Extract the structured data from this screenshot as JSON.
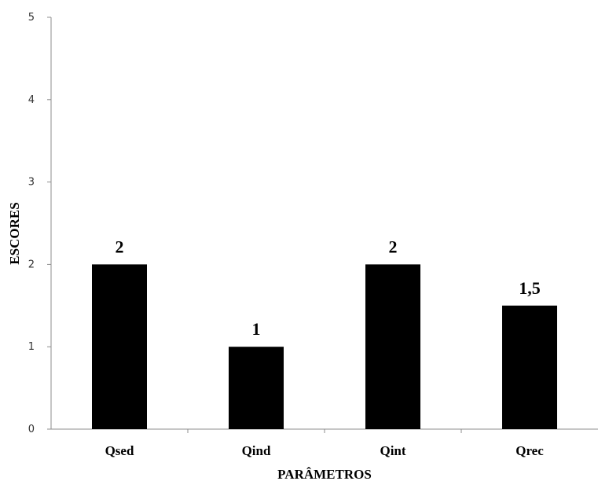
{
  "chart_data": {
    "type": "bar",
    "categories": [
      "Qsed",
      "Qind",
      "Qint",
      "Qrec"
    ],
    "values": [
      2,
      1,
      2,
      1.5
    ],
    "data_labels": [
      "2",
      "1",
      "2",
      "1,5"
    ],
    "xlabel": "PARÂMETROS",
    "ylabel": "ESCORES",
    "ylim": [
      0,
      5
    ],
    "yticks": [
      "0",
      "1",
      "2",
      "3",
      "4",
      "5"
    ],
    "bar_color": "#000000",
    "grid": false,
    "legend": "none"
  }
}
